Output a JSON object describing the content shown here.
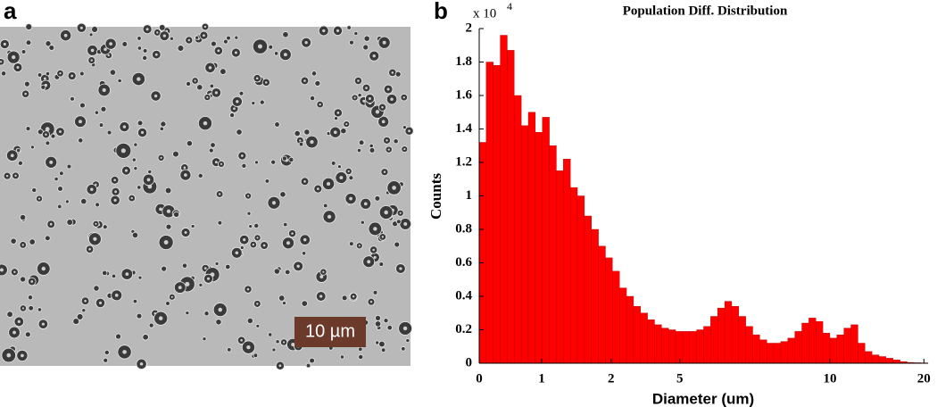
{
  "panel_a": {
    "label": "a",
    "scale_bar": "10 µm"
  },
  "chart_data": {
    "type": "histogram",
    "panel_label": "b",
    "title": "Population Diff. Distribution",
    "y_multiplier": "x 10",
    "y_multiplier_exponent": "4",
    "xlabel": "Diameter (um)",
    "ylabel": "Counts",
    "color": "#ff0000",
    "bins": [
      0,
      1,
      2,
      3,
      4,
      5,
      6,
      7,
      8,
      9,
      10,
      11,
      12,
      13,
      14,
      15,
      16,
      17,
      18,
      19,
      20,
      21,
      22,
      23,
      24,
      25,
      26,
      27,
      28,
      29,
      30,
      31,
      32,
      33,
      34,
      35,
      36,
      37,
      38,
      39,
      40,
      41,
      42,
      43,
      44,
      45,
      46,
      47,
      48,
      49,
      50,
      51,
      52,
      53,
      54,
      55,
      56,
      57,
      58,
      59,
      60,
      61,
      62,
      63,
      64
    ],
    "values": [
      1.32,
      1.8,
      1.78,
      1.96,
      1.87,
      1.6,
      1.42,
      1.5,
      1.38,
      1.47,
      1.3,
      1.15,
      1.22,
      1.05,
      1.0,
      0.88,
      0.8,
      0.7,
      0.63,
      0.55,
      0.45,
      0.4,
      0.34,
      0.3,
      0.26,
      0.23,
      0.21,
      0.2,
      0.19,
      0.19,
      0.19,
      0.2,
      0.22,
      0.28,
      0.33,
      0.37,
      0.34,
      0.28,
      0.22,
      0.17,
      0.14,
      0.12,
      0.12,
      0.13,
      0.15,
      0.19,
      0.24,
      0.27,
      0.25,
      0.18,
      0.15,
      0.17,
      0.21,
      0.23,
      0.12,
      0.07,
      0.05,
      0.04,
      0.03,
      0.02,
      0.01,
      0.005,
      0.003,
      0.002
    ],
    "xlim": [
      0,
      64
    ],
    "ylim": [
      0,
      2
    ],
    "xticks": [
      0,
      {
        "value": 8.9,
        "label": "1"
      },
      {
        "value": 18.8,
        "label": "2"
      },
      {
        "value": 28.6,
        "label": "5"
      },
      {
        "value": 50,
        "label": "10"
      },
      {
        "value": 63.4,
        "label": "20"
      }
    ],
    "yticks": [
      0,
      0.2,
      0.4,
      0.6,
      0.8,
      1,
      1.2,
      1.4,
      1.6,
      1.8,
      2
    ]
  }
}
